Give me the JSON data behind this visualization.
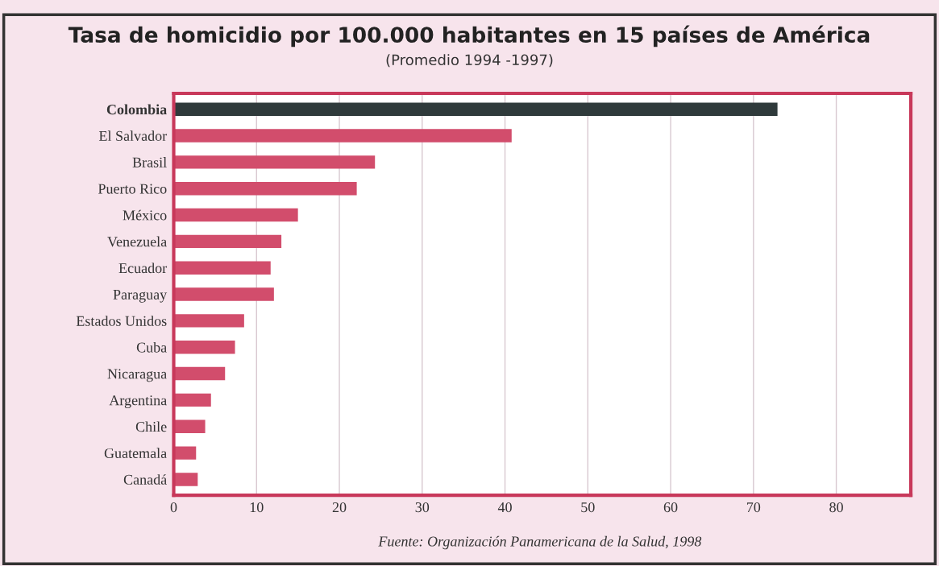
{
  "chart_data": {
    "type": "bar",
    "orientation": "horizontal",
    "title": "Tasa de homicidio por 100.000 habitantes en 15 países de América",
    "subtitle": "(Promedio 1994 -1997)",
    "categories": [
      "Colombia",
      "El Salvador",
      "Brasil",
      "Puerto Rico",
      "México",
      "Venezuela",
      "Ecuador",
      "Paraguay",
      "Estados Unidos",
      "Cuba",
      "Nicaragua",
      "Argentina",
      "Chile",
      "Guatemala",
      "Canadá"
    ],
    "values": [
      72.9,
      40.8,
      24.3,
      22.1,
      15.0,
      13.0,
      11.7,
      12.1,
      8.5,
      7.4,
      6.2,
      4.5,
      3.8,
      2.7,
      2.9
    ],
    "colors": [
      "#2f3a3b",
      "#d24d6c",
      "#d24d6c",
      "#d24d6c",
      "#d24d6c",
      "#d24d6c",
      "#d24d6c",
      "#d24d6c",
      "#d24d6c",
      "#d24d6c",
      "#d24d6c",
      "#d24d6c",
      "#d24d6c",
      "#d24d6c",
      "#d24d6c"
    ],
    "xlim": [
      0,
      89
    ],
    "xticks": [
      0,
      10,
      20,
      30,
      40,
      50,
      60,
      70,
      80
    ],
    "grid": "x",
    "annotations": [
      "Fuente: Organización Panamericana de la Salud, 1998"
    ]
  }
}
